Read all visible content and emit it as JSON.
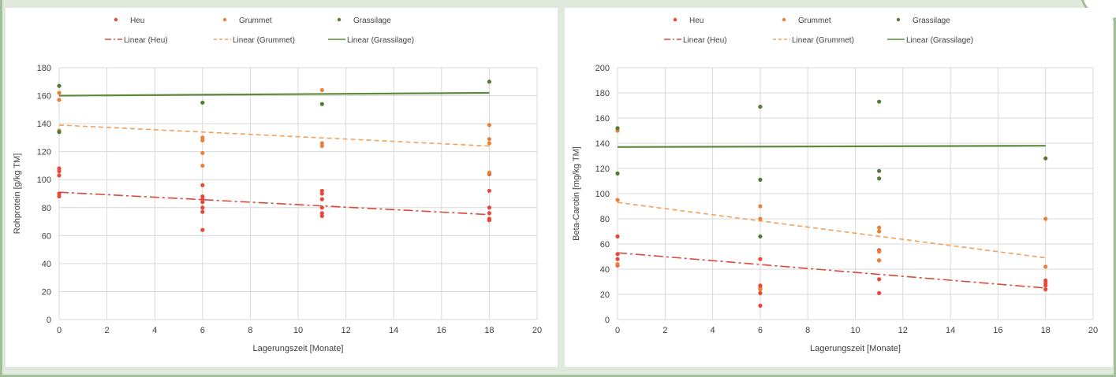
{
  "chart_data": [
    {
      "type": "scatter",
      "xlabel": "Lagerungszeit [Monate]",
      "ylabel": "Rohprotein [g/kg TM]",
      "xlim": [
        0,
        20
      ],
      "ylim": [
        0,
        180
      ],
      "xticks": [
        0,
        2,
        4,
        6,
        8,
        10,
        12,
        14,
        16,
        18,
        20
      ],
      "yticks": [
        0,
        20,
        40,
        60,
        80,
        100,
        120,
        140,
        160,
        180
      ],
      "grid": true,
      "legend_position": "top",
      "series": [
        {
          "name": "Heu",
          "color": "#e8483a",
          "x": [
            0,
            0,
            0,
            0,
            0,
            6,
            6,
            6,
            6,
            6,
            6,
            6,
            11,
            11,
            11,
            11,
            11,
            11,
            18,
            18,
            18,
            18,
            18,
            18
          ],
          "y": [
            88,
            90,
            103,
            108,
            106,
            64,
            77,
            80,
            84,
            86,
            88,
            96,
            74,
            76,
            80,
            86,
            90,
            92,
            71,
            72,
            76,
            80,
            92,
            104
          ]
        },
        {
          "name": "Grummet",
          "color": "#e8823a",
          "x": [
            0,
            0,
            0,
            6,
            6,
            6,
            6,
            11,
            11,
            11,
            18,
            18,
            18,
            18
          ],
          "y": [
            135,
            157,
            162,
            110,
            119,
            128,
            130,
            124,
            126,
            164,
            105,
            126,
            129,
            139
          ]
        },
        {
          "name": "Grassilage",
          "color": "#4f7d36",
          "x": [
            0,
            0,
            6,
            11,
            18
          ],
          "y": [
            134,
            167,
            155,
            154,
            170
          ]
        },
        {
          "name": "Linear (Heu)",
          "color": "#d84a3a",
          "style": "dashdot",
          "x": [
            0,
            18
          ],
          "y": [
            91,
            75
          ]
        },
        {
          "name": "Linear (Grummet)",
          "color": "#f2a05a",
          "style": "dash",
          "x": [
            0,
            18
          ],
          "y": [
            139,
            124
          ]
        },
        {
          "name": "Linear (Grassilage)",
          "color": "#5e8a3c",
          "style": "solid",
          "x": [
            0,
            18
          ],
          "y": [
            160,
            162
          ]
        }
      ]
    },
    {
      "type": "scatter",
      "xlabel": "Lagerungszeit [Monate]",
      "ylabel": "Beta-Carotin [mg/kg TM]",
      "xlim": [
        0,
        20
      ],
      "ylim": [
        0,
        200
      ],
      "xticks": [
        0,
        2,
        4,
        6,
        8,
        10,
        12,
        14,
        16,
        18,
        20
      ],
      "yticks": [
        0,
        20,
        40,
        60,
        80,
        100,
        120,
        140,
        160,
        180,
        200
      ],
      "grid": true,
      "legend_position": "top",
      "series": [
        {
          "name": "Heu",
          "color": "#e8483a",
          "x": [
            0,
            0,
            0,
            0,
            6,
            6,
            6,
            6,
            6,
            11,
            11,
            11,
            11,
            18,
            18,
            18,
            18
          ],
          "y": [
            43,
            48,
            52,
            66,
            11,
            21,
            25,
            27,
            48,
            21,
            32,
            47,
            55,
            24,
            27,
            29,
            31
          ]
        },
        {
          "name": "Grummet",
          "color": "#e8823a",
          "x": [
            0,
            0,
            0,
            6,
            6,
            6,
            11,
            11,
            11,
            11,
            18,
            18
          ],
          "y": [
            44,
            95,
            150,
            24,
            80,
            90,
            47,
            54,
            70,
            73,
            42,
            80
          ]
        },
        {
          "name": "Grassilage",
          "color": "#4f7d36",
          "x": [
            0,
            0,
            6,
            6,
            6,
            11,
            11,
            11,
            18
          ],
          "y": [
            116,
            152,
            66,
            111,
            169,
            112,
            118,
            173,
            128
          ]
        },
        {
          "name": "Linear (Heu)",
          "color": "#d84a3a",
          "style": "dashdot",
          "x": [
            0,
            18
          ],
          "y": [
            53,
            25
          ]
        },
        {
          "name": "Linear (Grummet)",
          "color": "#f2a05a",
          "style": "dash",
          "x": [
            0,
            18
          ],
          "y": [
            93,
            49
          ]
        },
        {
          "name": "Linear (Grassilage)",
          "color": "#5e8a3c",
          "style": "solid",
          "x": [
            0,
            18
          ],
          "y": [
            137,
            138
          ]
        }
      ]
    }
  ]
}
